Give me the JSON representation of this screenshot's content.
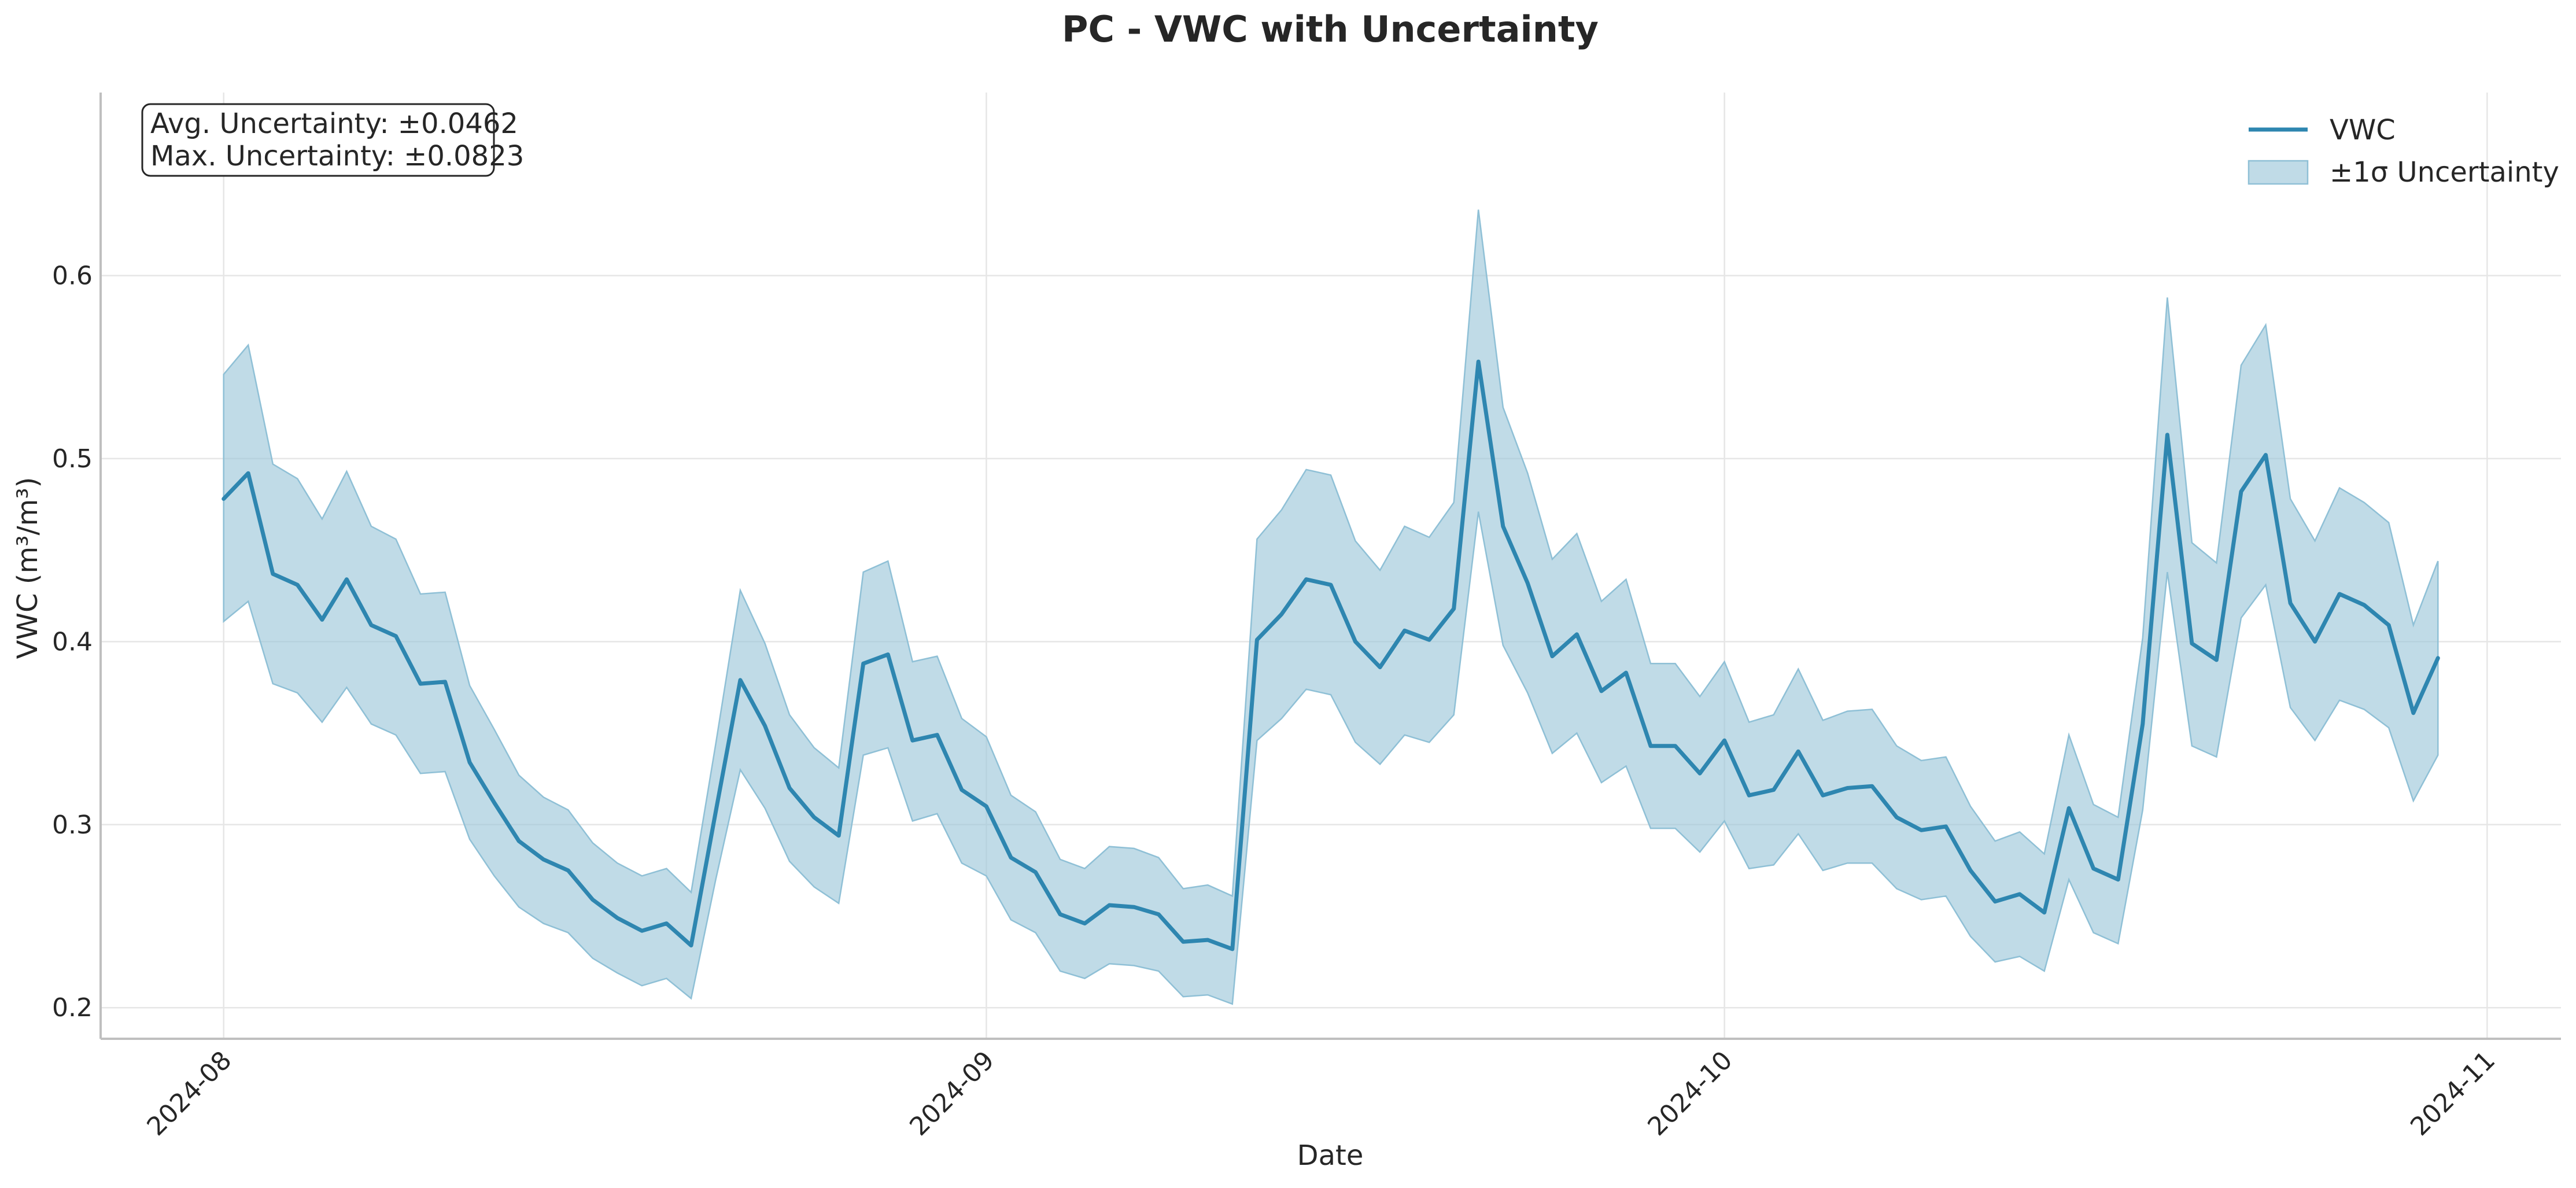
{
  "chart_data": {
    "type": "line",
    "title": "PC - VWC with Uncertainty",
    "xlabel": "Date",
    "ylabel": "VWC (m³/m³)",
    "xlim": [
      "2024-07-27",
      "2024-11-04"
    ],
    "ylim": [
      0.183,
      0.7
    ],
    "x_ticks": [
      "2024-08",
      "2024-09",
      "2024-10",
      "2024-11"
    ],
    "y_ticks": [
      0.2,
      0.3,
      0.4,
      0.5,
      0.6
    ],
    "y_tick_labels": [
      "0.2",
      "0.3",
      "0.4",
      "0.5",
      "0.6"
    ],
    "grid": true,
    "legend_position": "top-right",
    "legend": [
      "VWC",
      "±1σ Uncertainty"
    ],
    "annotation": [
      "Avg. Uncertainty: ±0.0462",
      "Max. Uncertainty: ±0.0823"
    ],
    "colors": {
      "line": "#2e86b0",
      "band_fill": "#9ec8da",
      "band_edge": "#8fc0d6"
    },
    "series": [
      {
        "name": "VWC",
        "x": [
          "2024-08-01",
          "2024-08-02",
          "2024-08-03",
          "2024-08-04",
          "2024-08-05",
          "2024-08-06",
          "2024-08-07",
          "2024-08-08",
          "2024-08-09",
          "2024-08-10",
          "2024-08-11",
          "2024-08-12",
          "2024-08-13",
          "2024-08-14",
          "2024-08-15",
          "2024-08-16",
          "2024-08-17",
          "2024-08-18",
          "2024-08-19",
          "2024-08-20",
          "2024-08-21",
          "2024-08-22",
          "2024-08-23",
          "2024-08-24",
          "2024-08-25",
          "2024-08-26",
          "2024-08-27",
          "2024-08-28",
          "2024-08-29",
          "2024-08-30",
          "2024-08-31",
          "2024-09-01",
          "2024-09-02",
          "2024-09-03",
          "2024-09-04",
          "2024-09-05",
          "2024-09-06",
          "2024-09-07",
          "2024-09-08",
          "2024-09-09",
          "2024-09-10",
          "2024-09-11",
          "2024-09-12",
          "2024-09-13",
          "2024-09-14",
          "2024-09-15",
          "2024-09-16",
          "2024-09-17",
          "2024-09-18",
          "2024-09-19",
          "2024-09-20",
          "2024-09-21",
          "2024-09-22",
          "2024-09-23",
          "2024-09-24",
          "2024-09-25",
          "2024-09-26",
          "2024-09-27",
          "2024-09-28",
          "2024-09-29",
          "2024-09-30",
          "2024-10-01",
          "2024-10-02",
          "2024-10-03",
          "2024-10-04",
          "2024-10-05",
          "2024-10-06",
          "2024-10-07",
          "2024-10-08",
          "2024-10-09",
          "2024-10-10",
          "2024-10-11",
          "2024-10-12",
          "2024-10-13",
          "2024-10-14",
          "2024-10-15",
          "2024-10-16",
          "2024-10-17",
          "2024-10-18",
          "2024-10-19",
          "2024-10-20",
          "2024-10-21",
          "2024-10-22",
          "2024-10-23",
          "2024-10-24",
          "2024-10-25",
          "2024-10-26",
          "2024-10-27",
          "2024-10-28",
          "2024-10-29",
          "2024-10-30"
        ],
        "values": [
          0.478,
          0.492,
          0.437,
          0.431,
          0.412,
          0.434,
          0.409,
          0.403,
          0.377,
          0.378,
          0.334,
          0.312,
          0.291,
          0.281,
          0.275,
          0.259,
          0.249,
          0.242,
          0.246,
          0.234,
          0.307,
          0.379,
          0.354,
          0.32,
          0.304,
          0.294,
          0.388,
          0.393,
          0.346,
          0.349,
          0.319,
          0.31,
          0.282,
          0.274,
          0.251,
          0.246,
          0.256,
          0.255,
          0.251,
          0.236,
          0.237,
          0.232,
          0.401,
          0.415,
          0.434,
          0.431,
          0.4,
          0.386,
          0.406,
          0.401,
          0.418,
          0.553,
          0.463,
          0.432,
          0.392,
          0.404,
          0.373,
          0.383,
          0.343,
          0.343,
          0.328,
          0.346,
          0.316,
          0.319,
          0.34,
          0.316,
          0.32,
          0.321,
          0.304,
          0.297,
          0.299,
          0.275,
          0.258,
          0.262,
          0.252,
          0.309,
          0.276,
          0.27,
          0.355,
          0.513,
          0.399,
          0.39,
          0.482,
          0.502,
          0.421,
          0.4,
          0.426,
          0.42,
          0.409,
          0.361,
          0.391
        ]
      },
      {
        "name": "±1σ Uncertainty",
        "upper": [
          0.546,
          0.562,
          0.497,
          0.489,
          0.467,
          0.493,
          0.463,
          0.456,
          0.426,
          0.427,
          0.376,
          0.352,
          0.327,
          0.315,
          0.308,
          0.29,
          0.279,
          0.272,
          0.276,
          0.263,
          0.344,
          0.428,
          0.399,
          0.36,
          0.342,
          0.331,
          0.438,
          0.444,
          0.389,
          0.392,
          0.358,
          0.348,
          0.316,
          0.307,
          0.281,
          0.276,
          0.288,
          0.287,
          0.282,
          0.265,
          0.267,
          0.261,
          0.456,
          0.472,
          0.494,
          0.491,
          0.455,
          0.439,
          0.463,
          0.457,
          0.476,
          0.636,
          0.528,
          0.492,
          0.445,
          0.459,
          0.422,
          0.434,
          0.388,
          0.388,
          0.37,
          0.389,
          0.356,
          0.36,
          0.385,
          0.357,
          0.362,
          0.363,
          0.343,
          0.335,
          0.337,
          0.31,
          0.291,
          0.296,
          0.284,
          0.349,
          0.311,
          0.304,
          0.402,
          0.588,
          0.454,
          0.443,
          0.551,
          0.573,
          0.478,
          0.455,
          0.484,
          0.476,
          0.465,
          0.409,
          0.444
        ],
        "lower": [
          0.411,
          0.422,
          0.377,
          0.372,
          0.356,
          0.375,
          0.355,
          0.349,
          0.328,
          0.329,
          0.292,
          0.272,
          0.255,
          0.246,
          0.241,
          0.227,
          0.219,
          0.212,
          0.216,
          0.205,
          0.27,
          0.33,
          0.309,
          0.28,
          0.266,
          0.257,
          0.338,
          0.342,
          0.302,
          0.306,
          0.279,
          0.272,
          0.248,
          0.241,
          0.22,
          0.216,
          0.224,
          0.223,
          0.22,
          0.206,
          0.207,
          0.202,
          0.346,
          0.358,
          0.374,
          0.371,
          0.345,
          0.333,
          0.349,
          0.345,
          0.36,
          0.471,
          0.398,
          0.372,
          0.339,
          0.35,
          0.323,
          0.332,
          0.298,
          0.298,
          0.285,
          0.302,
          0.276,
          0.278,
          0.295,
          0.275,
          0.279,
          0.279,
          0.265,
          0.259,
          0.261,
          0.239,
          0.225,
          0.228,
          0.22,
          0.27,
          0.241,
          0.235,
          0.308,
          0.438,
          0.343,
          0.337,
          0.413,
          0.431,
          0.364,
          0.346,
          0.368,
          0.363,
          0.353,
          0.313,
          0.338
        ]
      }
    ]
  }
}
